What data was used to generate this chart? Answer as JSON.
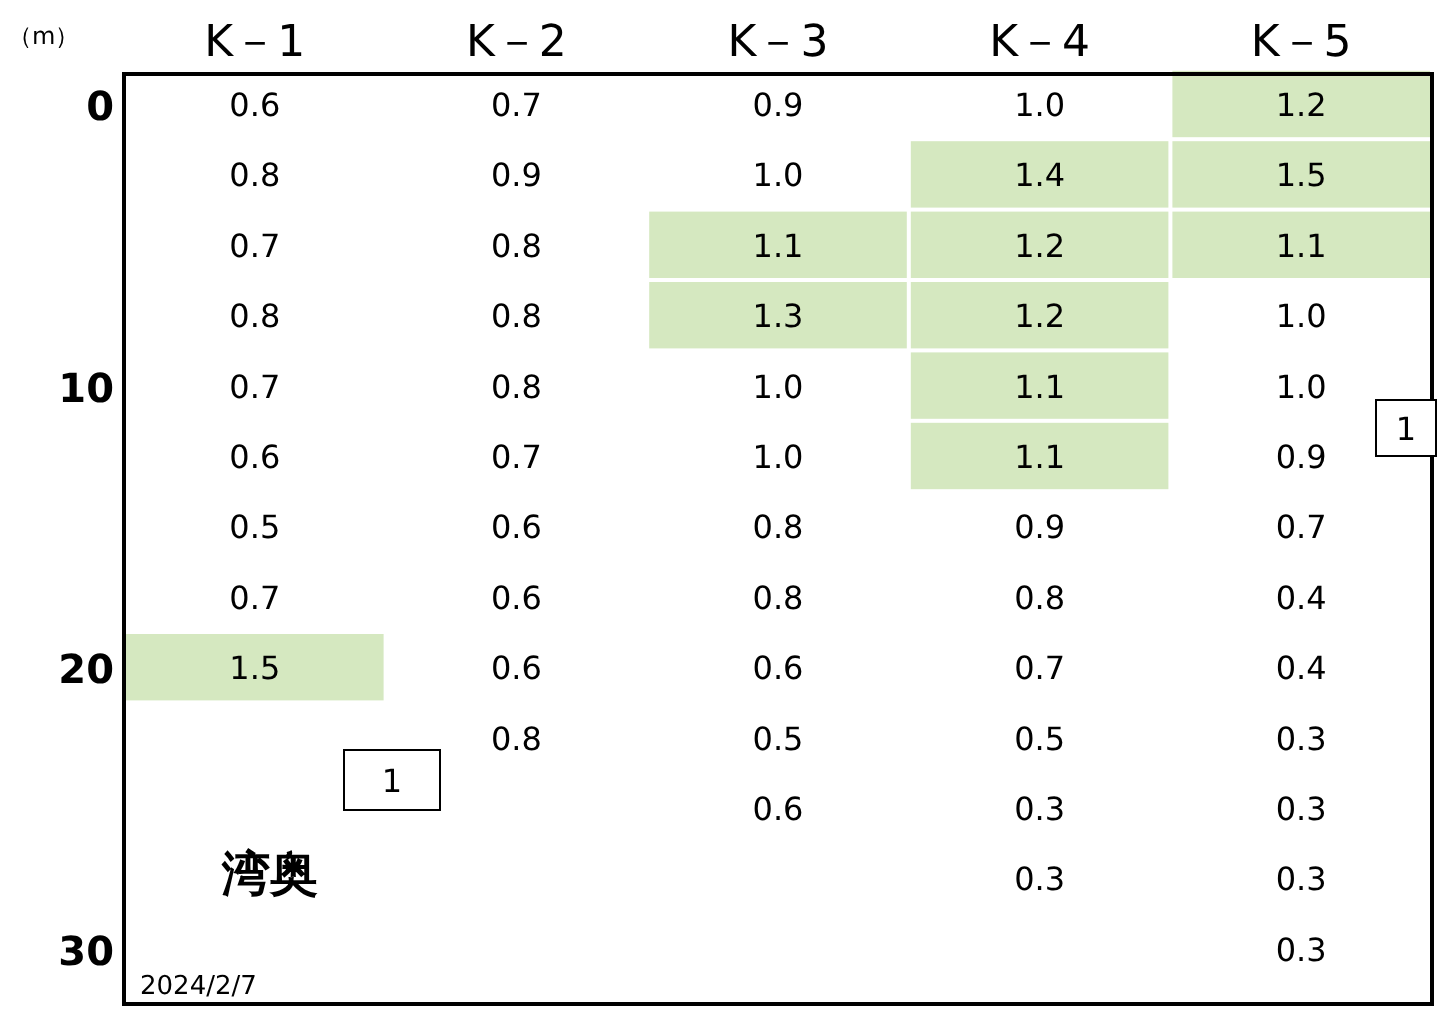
{
  "chart_data": {
    "type": "heatmap",
    "ylabel": "（m）",
    "categories": [
      "K－1",
      "K－2",
      "K－3",
      "K－4",
      "K－5"
    ],
    "y_categories": [
      "0",
      null,
      null,
      null,
      "10",
      null,
      null,
      null,
      "20",
      null,
      null,
      null,
      "30"
    ],
    "cells": [
      [
        0.6,
        0.7,
        0.9,
        1.0,
        1.2
      ],
      [
        0.8,
        0.9,
        1.0,
        1.4,
        1.5
      ],
      [
        0.7,
        0.8,
        1.1,
        1.2,
        1.1
      ],
      [
        0.8,
        0.8,
        1.3,
        1.2,
        1.0
      ],
      [
        0.7,
        0.8,
        1.0,
        1.1,
        1.0
      ],
      [
        0.6,
        0.7,
        1.0,
        1.1,
        0.9
      ],
      [
        0.5,
        0.6,
        0.8,
        0.9,
        0.7
      ],
      [
        0.7,
        0.6,
        0.8,
        0.8,
        0.4
      ],
      [
        1.5,
        0.6,
        0.6,
        0.7,
        0.4
      ],
      [
        null,
        0.8,
        0.5,
        0.5,
        0.3
      ],
      [
        null,
        null,
        0.6,
        0.3,
        0.3
      ],
      [
        null,
        null,
        null,
        0.3,
        0.3
      ],
      [
        null,
        null,
        null,
        null,
        0.3
      ]
    ],
    "cell_labels": [
      [
        "0.6",
        "0.7",
        "0.9",
        "1.0",
        "1.2"
      ],
      [
        "0.8",
        "0.9",
        "1.0",
        "1.4",
        "1.5"
      ],
      [
        "0.7",
        "0.8",
        "1.1",
        "1.2",
        "1.1"
      ],
      [
        "0.8",
        "0.8",
        "1.3",
        "1.2",
        "1.0"
      ],
      [
        "0.7",
        "0.8",
        "1.0",
        "1.1",
        "1.0"
      ],
      [
        "0.6",
        "0.7",
        "1.0",
        "1.1",
        "0.9"
      ],
      [
        "0.5",
        "0.6",
        "0.8",
        "0.9",
        "0.7"
      ],
      [
        "0.7",
        "0.6",
        "0.8",
        "0.8",
        "0.4"
      ],
      [
        "1.5",
        "0.6",
        "0.6",
        "0.7",
        "0.4"
      ],
      [
        null,
        "0.8",
        "0.5",
        "0.5",
        "0.3"
      ],
      [
        null,
        null,
        "0.6",
        "0.3",
        "0.3"
      ],
      [
        null,
        null,
        null,
        "0.3",
        "0.3"
      ],
      [
        null,
        null,
        null,
        null,
        "0.3"
      ]
    ],
    "annotations": [
      "1",
      "1",
      "湾奥",
      "2024/2/7"
    ]
  }
}
